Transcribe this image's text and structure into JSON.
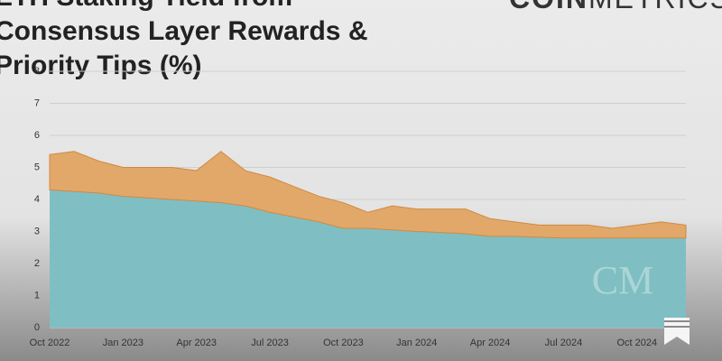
{
  "chart_data": {
    "type": "stacked_area",
    "title": "ETH Staking Yield from Consensus Layer Rewards & Priority Tips (%)",
    "logo": {
      "bold": "COIN",
      "light": "METRICS"
    },
    "watermark": "CM",
    "categories": [
      "Oct 2022",
      null,
      null,
      "Jan 2023",
      null,
      null,
      "Apr 2023",
      null,
      null,
      "Jul 2023",
      null,
      null,
      "Oct 2023",
      null,
      null,
      "Jan 2024",
      null,
      null,
      "Apr 2024",
      null,
      null,
      "Jul 2024",
      null,
      null,
      "Oct 2024",
      null,
      null
    ],
    "series": [
      {
        "name": "Consensus Layer Rewards",
        "color": "#7fbfc3",
        "values": [
          4.3,
          4.25,
          4.2,
          4.1,
          4.05,
          4.0,
          3.95,
          3.9,
          3.8,
          3.6,
          3.45,
          3.3,
          3.1,
          3.1,
          3.05,
          3.0,
          2.97,
          2.93,
          2.85,
          2.85,
          2.82,
          2.8,
          2.8,
          2.8,
          2.8,
          2.8,
          2.8
        ]
      },
      {
        "name": "Priority Tips",
        "color": "#e2a86a",
        "values": [
          1.1,
          1.25,
          1.0,
          0.9,
          0.95,
          1.0,
          0.95,
          1.6,
          1.1,
          1.1,
          0.95,
          0.8,
          0.8,
          0.5,
          0.75,
          0.7,
          0.73,
          0.77,
          0.55,
          0.45,
          0.38,
          0.4,
          0.4,
          0.3,
          0.4,
          0.5,
          0.4
        ]
      }
    ],
    "ylim": [
      0,
      8
    ],
    "yticks": [
      0,
      1,
      2,
      3,
      4,
      5,
      6,
      7,
      8
    ],
    "grid": true
  }
}
